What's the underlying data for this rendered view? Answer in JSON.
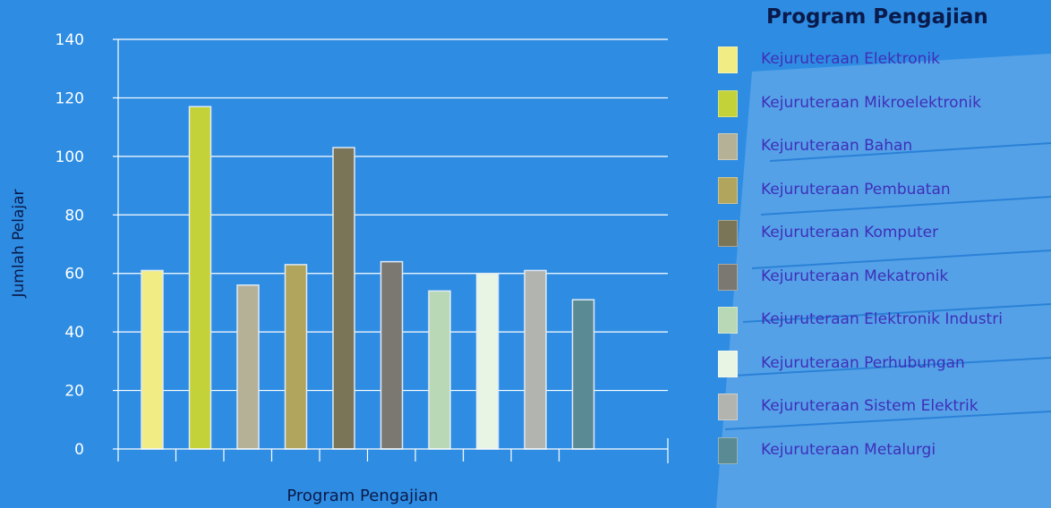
{
  "chart_data": {
    "type": "bar",
    "title": "",
    "xlabel": "Program Pengajian",
    "ylabel": "Jumlah Pelajar",
    "ylim": [
      0,
      140
    ],
    "yticks": [
      0,
      20,
      40,
      60,
      80,
      100,
      120,
      140
    ],
    "grid": true,
    "legend_position": "right",
    "categories": [
      "Kejuruteraan Elektronik",
      "Kejuruteraan Mikroelektronik",
      "Kejuruteraan Bahan",
      "Kejuruteraan Pembuatan",
      "Kejuruteraan Komputer",
      "Kejuruteraan Mekatronik",
      "Kejuruteraan Elektronik Industri",
      "Kejuruteraan Perhubungan",
      "Kejuruteraan Sistem Elektrik",
      "Kejuruteraan Metalurgi"
    ],
    "values": [
      61,
      117,
      56,
      63,
      103,
      64,
      54,
      60,
      61,
      51
    ],
    "colors": [
      "#f1ec84",
      "#c4d23a",
      "#b5b197",
      "#b1a55e",
      "#7b7558",
      "#7a7870",
      "#b9d9b6",
      "#e8f5e4",
      "#b2b4b0",
      "#5a8a93"
    ]
  },
  "legend": {
    "title": "Program Pengajian"
  },
  "colors": {
    "background": "#2e8de3",
    "axis": "#ffffff",
    "tick_label": "#ffffff",
    "axis_title": "#0a1a4a",
    "legend_text": "#3f2fb8"
  }
}
